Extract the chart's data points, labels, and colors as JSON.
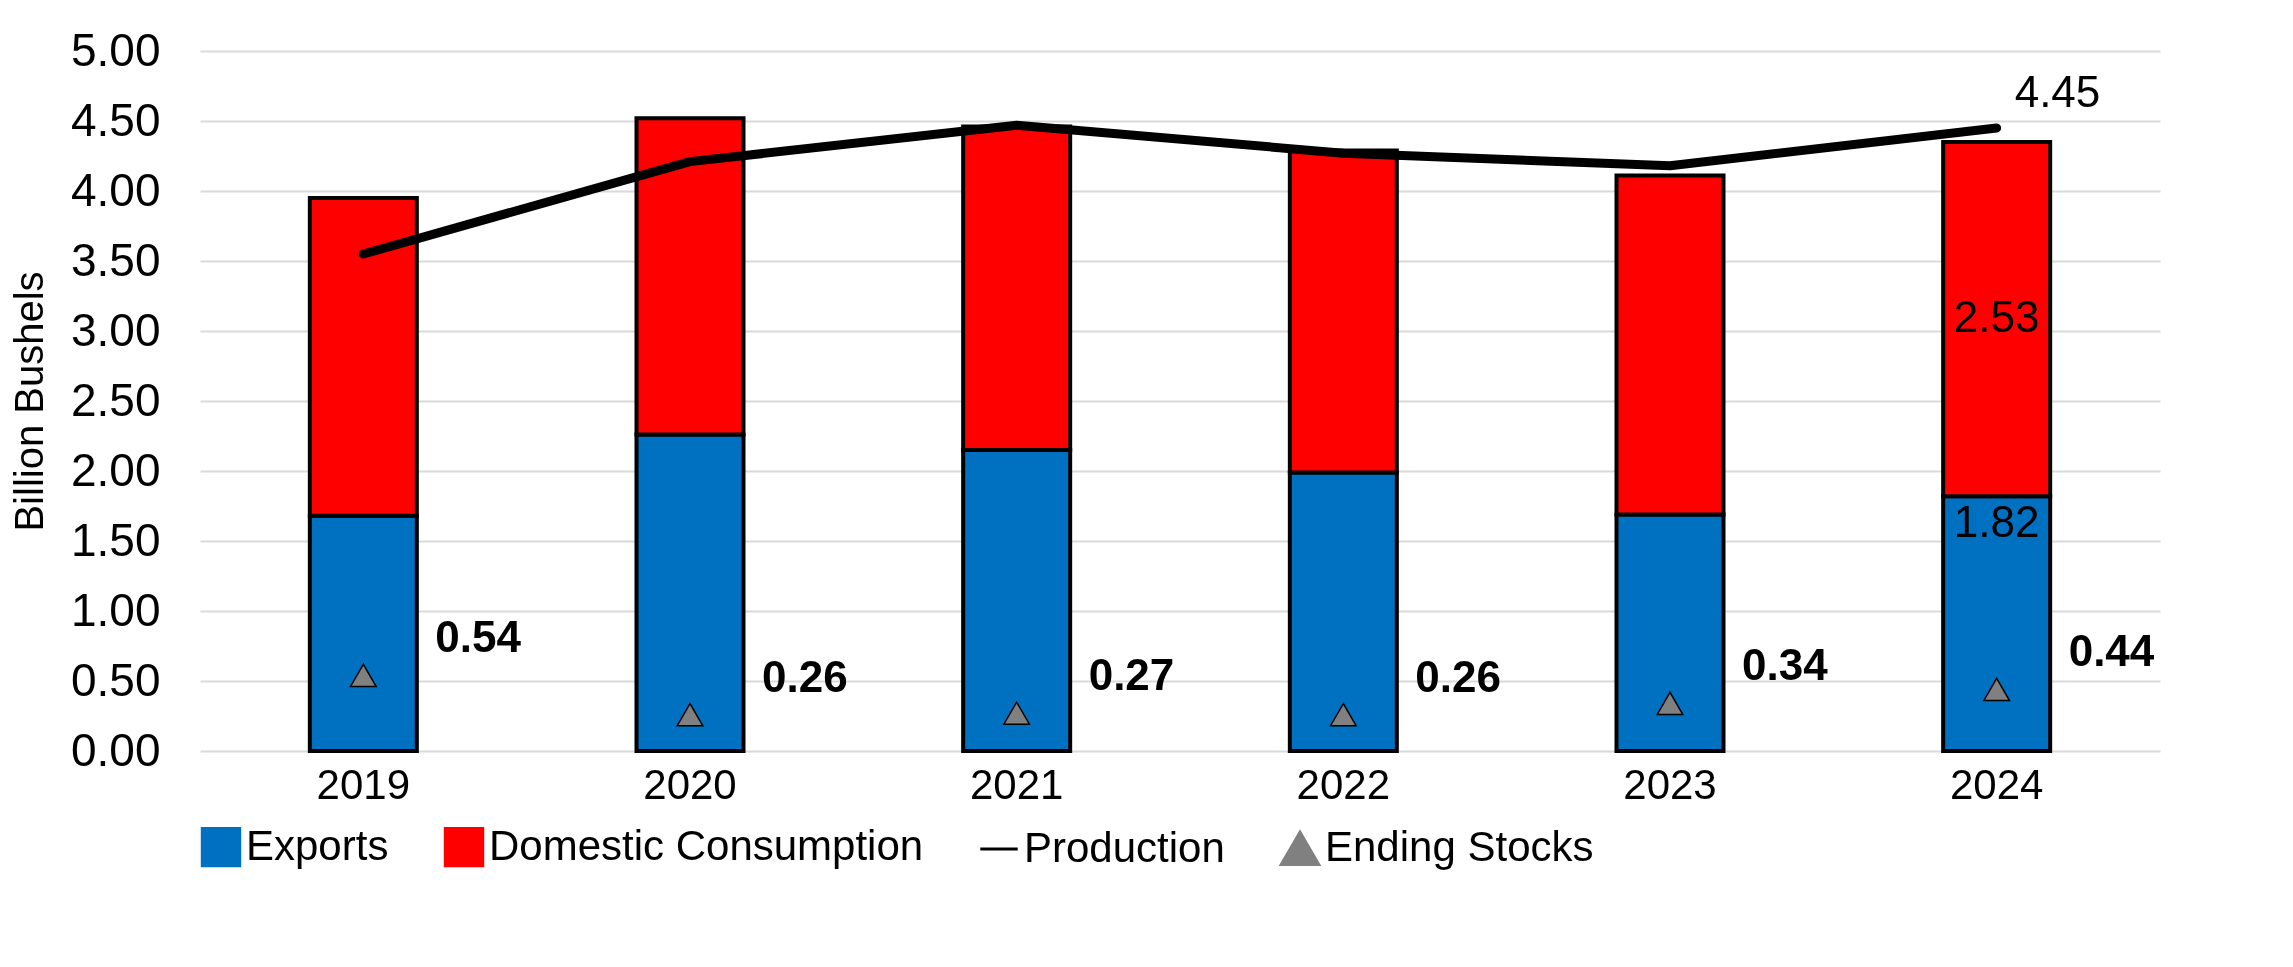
{
  "chart_data": {
    "type": "bar",
    "ylabel": "Billion Bushels",
    "categories": [
      "2019",
      "2020",
      "2021",
      "2022",
      "2023",
      "2024"
    ],
    "stacked": true,
    "series": [
      {
        "name": "Exports",
        "color": "#0070c0",
        "values": [
          1.68,
          2.26,
          2.15,
          1.99,
          1.69,
          1.82
        ],
        "value_labels": [
          null,
          null,
          null,
          null,
          null,
          "1.82"
        ]
      },
      {
        "name": "Domestic Consumption",
        "color": "#ff0000",
        "values": [
          2.27,
          2.26,
          2.31,
          2.3,
          2.42,
          2.53
        ],
        "value_labels": [
          null,
          null,
          null,
          null,
          null,
          "2.53"
        ]
      },
      {
        "name": "Production",
        "type": "line",
        "color": "#000000",
        "values": [
          3.55,
          4.21,
          4.47,
          4.27,
          4.18,
          4.45
        ],
        "value_labels": [
          null,
          null,
          null,
          null,
          null,
          "4.45"
        ]
      },
      {
        "name": "Ending Stocks",
        "type": "scatter",
        "marker": "triangle",
        "color": "#808080",
        "values": [
          0.54,
          0.26,
          0.27,
          0.26,
          0.34,
          0.44
        ],
        "data_labels": true
      }
    ],
    "ylim": [
      0,
      5
    ],
    "yticks": [
      {
        "value": 0,
        "label": "0.00"
      },
      {
        "value": 0.5,
        "label": "0.50"
      },
      {
        "value": 1,
        "label": "1.00"
      },
      {
        "value": 1.5,
        "label": "1.50"
      },
      {
        "value": 2,
        "label": "2.00"
      },
      {
        "value": 2.5,
        "label": "2.50"
      },
      {
        "value": 3,
        "label": "3.00"
      },
      {
        "value": 3.5,
        "label": "3.50"
      },
      {
        "value": 4,
        "label": "4.00"
      },
      {
        "value": 4.5,
        "label": "4.50"
      },
      {
        "value": 5,
        "label": "5.00"
      }
    ],
    "grid": "y",
    "legend": "bottom"
  }
}
